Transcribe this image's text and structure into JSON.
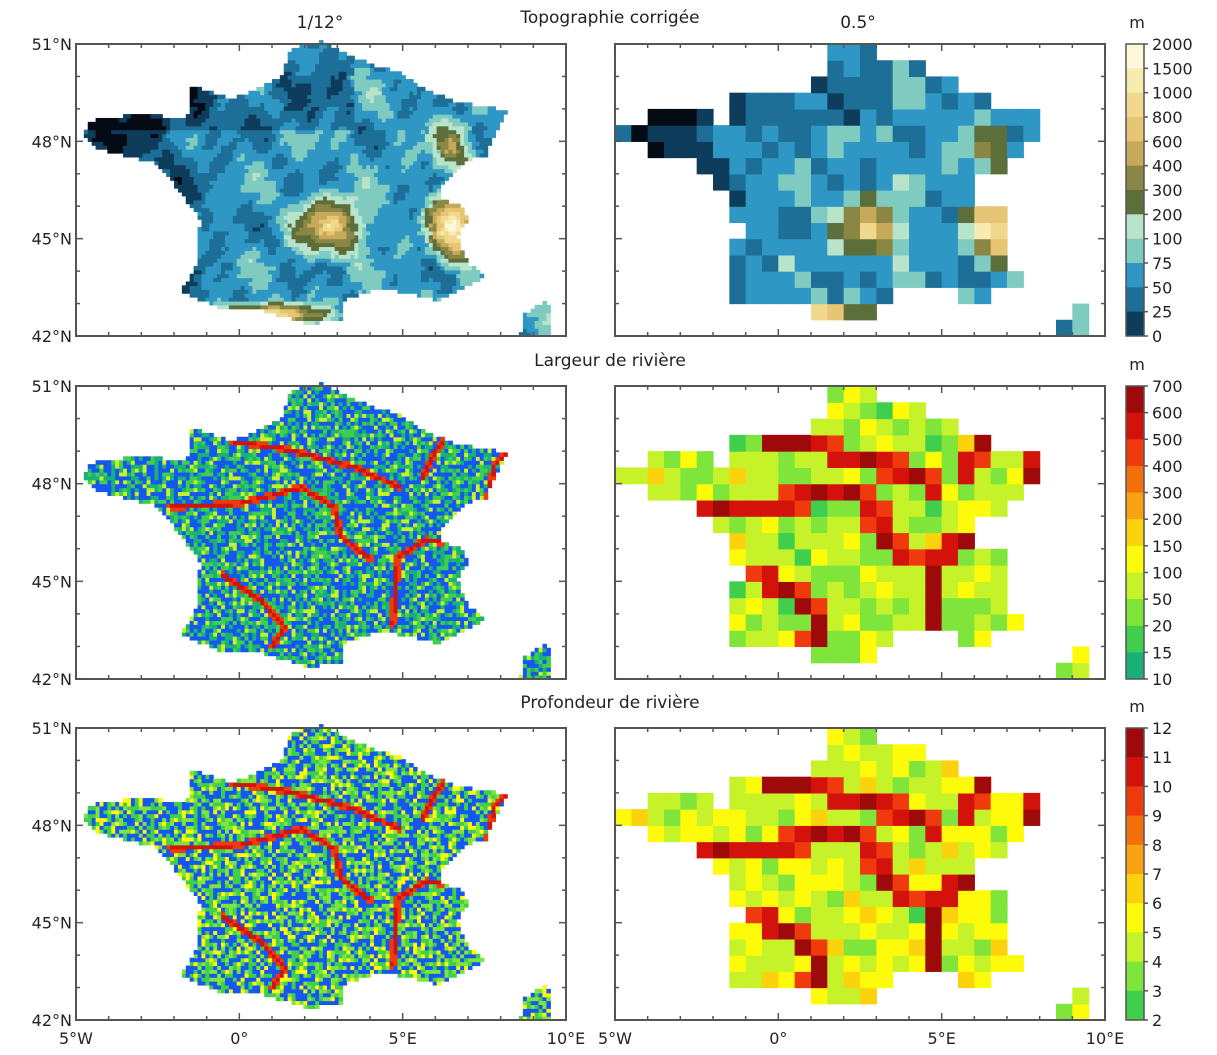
{
  "columns": [
    "1/12°",
    "0.5°"
  ],
  "lon_ticks": [
    "5°W",
    "0°",
    "5°E",
    "10°E"
  ],
  "lon_values": [
    -5,
    0,
    5,
    10
  ],
  "lat_ticks": [
    "51°N",
    "48°N",
    "45°N",
    "42°N"
  ],
  "lat_values": [
    51,
    48,
    45,
    42
  ],
  "extent": {
    "lon": [
      -5,
      10
    ],
    "lat": [
      42,
      51
    ]
  },
  "panels": [
    {
      "title": "Topographie corrigée",
      "unit": "m",
      "colorbar_ticks": [
        "2000",
        "1500",
        "1000",
        "800",
        "600",
        "400",
        "300",
        "200",
        "100",
        "75",
        "50",
        "25",
        "0"
      ],
      "colors": [
        "#fdf8dc",
        "#f7ebb0",
        "#f0d98c",
        "#e6c574",
        "#c7a95a",
        "#8a8644",
        "#5c6e3a",
        "#b9e4cc",
        "#80cbc0",
        "#2f97c4",
        "#1d6f98",
        "#0e3d5c",
        "#050b14"
      ]
    },
    {
      "title": "Largeur de rivière",
      "unit": "m",
      "colorbar_ticks": [
        "700",
        "600",
        "500",
        "400",
        "300",
        "200",
        "150",
        "100",
        "50",
        "20",
        "15",
        "10"
      ],
      "colors": [
        "#9e0a0a",
        "#d4120c",
        "#ee3a0c",
        "#f2700a",
        "#f7a312",
        "#fbd20c",
        "#fdfb0a",
        "#c6f22a",
        "#7fe53a",
        "#3fcf4c",
        "#19b07a",
        "#1557f0"
      ]
    },
    {
      "title": "Profondeur de rivière",
      "unit": "m",
      "colorbar_ticks": [
        "12",
        "11",
        "10",
        "9",
        "8",
        "7",
        "6",
        "5",
        "4",
        "3",
        "2"
      ],
      "colors": [
        "#9e0a0a",
        "#d4120c",
        "#ee3a0c",
        "#f2700a",
        "#f7a312",
        "#fbd20c",
        "#fdfb0a",
        "#c6f22a",
        "#7fe53a",
        "#3fcf4c",
        "#1557f0"
      ]
    }
  ]
}
